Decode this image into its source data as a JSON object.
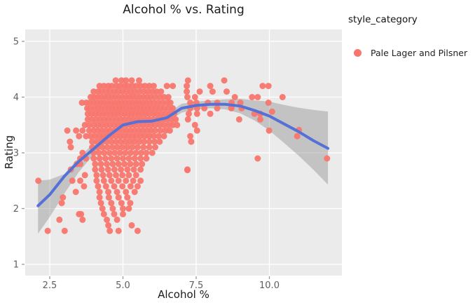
{
  "styles": {
    "figure_bg": "#FFFFFF",
    "panel_bg": "#EBEBEB",
    "grid_color": "#FFFFFF",
    "tick_mark_color": "#999999",
    "tick_label_color": "#606060",
    "text_color": "#1C1C1C",
    "point_color": "#F8766D",
    "smooth_line_color": "#5571D7",
    "band_color": "#8C8C8C",
    "band_opacity": 0.42
  },
  "legend": {
    "title": "style_category",
    "entries": [
      {
        "label": "Pale Lager and Pilsner",
        "color": "#F8766D"
      }
    ]
  },
  "chart_data": {
    "type": "scatter",
    "title": "Alcohol % vs. Rating",
    "xlabel": "Alcohol %",
    "ylabel": "Rating",
    "xlim": [
      1.66,
      12.48
    ],
    "ylim": [
      0.8,
      5.21
    ],
    "x_ticks": [
      2.5,
      5.0,
      7.5,
      10.0
    ],
    "x_tick_labels": [
      "2.5",
      "5.0",
      "7.5",
      "10.0"
    ],
    "y_ticks": [
      1,
      2,
      3,
      4,
      5
    ],
    "y_tick_labels": [
      "1",
      "2",
      "3",
      "4",
      "5"
    ],
    "grid": "major-only-white-on-gray",
    "legend_position": "right-top-outside",
    "series_name": "Pale Lager and Pilsner",
    "scatter_bands": [
      {
        "rating": 4.3,
        "alcohol": [
          4.75,
          4.95,
          5.1,
          5.3,
          5.55,
          7.22,
          8.46
        ]
      },
      {
        "rating": 4.2,
        "alcohol": [
          4.2,
          4.35,
          4.5,
          4.62,
          4.78,
          4.9,
          5.05,
          5.18,
          5.32,
          5.45,
          5.6,
          5.75,
          5.9,
          6.05,
          6.5,
          6.7,
          7.18,
          7.98,
          9.77,
          9.97
        ]
      },
      {
        "rating": 4.1,
        "alcohol": [
          4.0,
          4.15,
          4.28,
          4.42,
          4.55,
          4.7,
          4.84,
          4.98,
          5.12,
          5.26,
          5.4,
          5.55,
          5.7,
          5.85,
          6.0,
          6.15,
          6.3,
          7.18,
          7.62,
          8.06,
          8.54
        ]
      },
      {
        "rating": 4.0,
        "alcohol": [
          3.9,
          4.02,
          4.14,
          4.26,
          4.38,
          4.5,
          4.62,
          4.74,
          4.86,
          4.98,
          5.1,
          5.22,
          5.34,
          5.46,
          5.58,
          5.7,
          5.82,
          5.95,
          6.1,
          6.25,
          6.4,
          6.55,
          7.2,
          7.46,
          8.82,
          9.41,
          9.6,
          10.45
        ]
      },
      {
        "rating": 3.9,
        "alcohol": [
          3.6,
          3.75,
          3.88,
          4.0,
          4.12,
          4.24,
          4.36,
          4.48,
          4.6,
          4.72,
          4.84,
          4.96,
          5.08,
          5.2,
          5.32,
          5.44,
          5.56,
          5.68,
          5.8,
          5.92,
          6.05,
          6.2,
          6.35,
          6.5,
          6.62,
          7.3,
          7.51,
          7.9,
          8.22,
          8.71,
          9.01,
          9.97
        ]
      },
      {
        "rating": 3.8,
        "alcohol": [
          3.78,
          3.9,
          4.03,
          4.15,
          4.27,
          4.4,
          4.52,
          4.64,
          4.76,
          4.88,
          5.0,
          5.12,
          5.24,
          5.36,
          5.48,
          5.6,
          5.72,
          5.85,
          5.98,
          6.12,
          6.26,
          6.4,
          6.55,
          6.7,
          7.3,
          7.53,
          7.78,
          8.22,
          8.7,
          9.05
        ]
      },
      {
        "rating": 3.7,
        "alcohol": [
          3.8,
          3.93,
          4.06,
          4.19,
          4.32,
          4.45,
          4.58,
          4.7,
          4.82,
          4.94,
          5.06,
          5.18,
          5.3,
          5.42,
          5.54,
          5.66,
          5.78,
          5.9,
          6.03,
          6.16,
          6.3,
          6.45,
          6.6,
          6.75,
          7.25,
          7.53,
          7.98,
          9.49,
          9.69
        ]
      },
      {
        "rating": 3.6,
        "alcohol": [
          3.8,
          3.94,
          4.08,
          4.22,
          4.36,
          4.5,
          4.64,
          4.78,
          4.92,
          5.06,
          5.2,
          5.34,
          5.48,
          5.62,
          5.76,
          5.9,
          6.05,
          6.2,
          6.35,
          6.5,
          6.65,
          6.8,
          7.22,
          8.97,
          9.69
        ]
      },
      {
        "rating": 3.5,
        "alcohol": [
          3.7,
          3.85,
          4.0,
          4.14,
          4.28,
          4.42,
          4.56,
          4.7,
          4.84,
          4.98,
          5.12,
          5.26,
          5.4,
          5.54,
          5.68,
          5.82,
          5.96,
          6.1,
          6.25,
          6.4,
          6.55,
          6.7,
          6.85,
          7.46
        ]
      },
      {
        "rating": 3.4,
        "alcohol": [
          3.1,
          3.4,
          3.62,
          3.85,
          4.0,
          4.14,
          4.28,
          4.42,
          4.56,
          4.7,
          4.84,
          4.98,
          5.12,
          5.26,
          5.4,
          5.54,
          5.68,
          5.82,
          5.96,
          6.1,
          6.28,
          6.45,
          6.6,
          7.53
        ]
      },
      {
        "rating": 3.3,
        "alcohol": [
          3.5,
          3.74,
          3.9,
          4.05,
          4.2,
          4.34,
          4.48,
          4.62,
          4.76,
          4.9,
          5.04,
          5.18,
          5.32,
          5.46,
          5.6,
          5.75,
          5.9,
          6.05,
          6.22,
          6.4,
          7.3
        ]
      },
      {
        "rating": 3.2,
        "alcohol": [
          3.19,
          3.95,
          4.12,
          4.28,
          4.44,
          4.6,
          4.76,
          4.92,
          5.08,
          5.24,
          5.4,
          5.56,
          5.72,
          5.9,
          6.08,
          6.25,
          7.33
        ]
      },
      {
        "rating": 3.1,
        "alcohol": [
          3.22,
          3.95,
          4.13,
          4.3,
          4.47,
          4.64,
          4.81,
          4.98,
          5.15,
          5.32,
          5.5,
          5.7,
          5.9,
          6.1
        ]
      },
      {
        "rating": 3.0,
        "alcohol": [
          3.62,
          4.0,
          4.18,
          4.36,
          4.54,
          4.72,
          4.9,
          5.08,
          5.26,
          5.44,
          5.62,
          5.8,
          6.0
        ]
      },
      {
        "rating": 2.9,
        "alcohol": [
          3.54,
          3.74,
          4.0,
          4.2,
          4.4,
          4.6,
          4.8,
          5.0,
          5.2,
          5.4,
          5.6,
          5.8,
          9.6,
          11.97
        ]
      },
      {
        "rating": 2.8,
        "alcohol": [
          3.42,
          3.54,
          4.05,
          4.25,
          4.45,
          4.65,
          4.85,
          5.05,
          5.25,
          5.45,
          5.65
        ]
      },
      {
        "rating": 2.7,
        "alcohol": [
          3.22,
          4.05,
          4.27,
          4.49,
          4.71,
          4.93,
          5.15,
          5.37,
          5.6,
          7.2
        ]
      },
      {
        "rating": 2.6,
        "alcohol": [
          3.7,
          4.1,
          4.32,
          4.54,
          4.76,
          4.98,
          5.2,
          5.45
        ]
      },
      {
        "rating": 2.5,
        "alcohol": [
          2.11,
          3.27,
          3.54,
          4.1,
          4.35,
          4.6,
          4.85,
          5.1,
          5.35,
          5.6
        ]
      },
      {
        "rating": 2.4,
        "alcohol": [
          3.67,
          4.15,
          4.42,
          4.7,
          4.98,
          5.26,
          5.5
        ]
      },
      {
        "rating": 2.3,
        "alcohol": [
          3.39,
          4.2,
          4.5,
          4.8,
          5.1,
          5.4
        ]
      },
      {
        "rating": 2.2,
        "alcohol": [
          2.95,
          4.2,
          4.52,
          4.85,
          5.15
        ]
      },
      {
        "rating": 2.1,
        "alcohol": [
          2.91,
          4.25,
          4.6,
          4.95,
          5.25
        ]
      },
      {
        "rating": 2.0,
        "alcohol": [
          4.3,
          4.65,
          5.0,
          5.2
        ]
      },
      {
        "rating": 1.9,
        "alcohol": [
          3.5,
          3.57,
          4.35,
          4.7,
          5.0
        ]
      },
      {
        "rating": 1.8,
        "alcohol": [
          2.83,
          3.62,
          4.45,
          4.8
        ]
      },
      {
        "rating": 1.7,
        "alcohol": [
          4.5,
          5.3
        ]
      },
      {
        "rating": 1.6,
        "alcohol": [
          2.43,
          3.01,
          4.55,
          4.85,
          5.5
        ]
      }
    ],
    "extra_points": [
      [
        10.09,
        3.74
      ],
      [
        9.99,
        3.4
      ],
      [
        11.01,
        3.41
      ],
      [
        10.95,
        3.3
      ],
      [
        7.2,
        2.69
      ],
      [
        8.7,
        3.82
      ]
    ],
    "smooth_line": {
      "x": [
        2.1,
        2.5,
        3.0,
        3.5,
        4.0,
        4.5,
        5.0,
        5.5,
        6.0,
        6.5,
        7.0,
        7.5,
        8.0,
        8.5,
        9.0,
        9.5,
        10.0,
        10.5,
        11.0,
        11.5,
        12.0
      ],
      "y": [
        2.05,
        2.25,
        2.58,
        2.85,
        3.07,
        3.3,
        3.5,
        3.56,
        3.57,
        3.63,
        3.8,
        3.85,
        3.87,
        3.87,
        3.84,
        3.76,
        3.66,
        3.52,
        3.38,
        3.22,
        3.08
      ]
    },
    "confidence_band": {
      "x": [
        2.1,
        2.5,
        3.0,
        3.5,
        4.0,
        4.5,
        5.0,
        5.5,
        6.0,
        6.5,
        7.0,
        7.5,
        8.0,
        8.5,
        9.0,
        9.5,
        10.0,
        10.5,
        11.0,
        11.5,
        12.0
      ],
      "lower": [
        1.55,
        1.85,
        2.27,
        2.66,
        2.97,
        3.23,
        3.44,
        3.5,
        3.51,
        3.56,
        3.72,
        3.78,
        3.8,
        3.78,
        3.71,
        3.58,
        3.4,
        3.18,
        2.95,
        2.7,
        2.43
      ],
      "upper": [
        2.5,
        2.52,
        2.62,
        2.92,
        3.17,
        3.37,
        3.56,
        3.62,
        3.63,
        3.7,
        3.88,
        3.92,
        3.94,
        3.96,
        3.97,
        3.94,
        3.92,
        3.86,
        3.81,
        3.77,
        3.74
      ]
    }
  }
}
